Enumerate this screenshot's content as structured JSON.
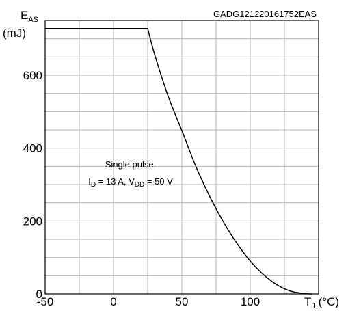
{
  "figure_code": "GADG121220161752EAS",
  "chart_data": {
    "type": "line",
    "title": "",
    "xlabel": {
      "main": "T",
      "sub": "J",
      "unit": " (°C)"
    },
    "ylabel": {
      "main": "E",
      "sub": "AS",
      "unit": "(mJ)"
    },
    "xlim": [
      -50,
      150
    ],
    "ylim": [
      0,
      750
    ],
    "grid": true,
    "x_ticks": [
      -50,
      0,
      50,
      100
    ],
    "x_tick_labels": [
      "-50",
      "0",
      "50",
      "100"
    ],
    "y_ticks": [
      0,
      200,
      400,
      600
    ],
    "y_tick_labels": [
      "0",
      "200",
      "400",
      "600"
    ],
    "series": [
      {
        "x": [
          -50,
          25,
          30,
          40,
          50,
          60,
          70,
          80,
          90,
          100,
          110,
          120,
          130,
          140,
          145
        ],
        "y": [
          728,
          728,
          658,
          542,
          448,
          352,
          270,
          200,
          140,
          90,
          52,
          24,
          7,
          1,
          0
        ]
      }
    ],
    "annotations": [
      {
        "lines": [
          [
            {
              "text": "Single pulse,"
            }
          ],
          [
            {
              "text": "I"
            },
            {
              "text": "D",
              "sub": true
            },
            {
              "text": " = 13 A, V"
            },
            {
              "text": "DD",
              "sub": true
            },
            {
              "text": " = 50 V"
            }
          ]
        ]
      }
    ]
  }
}
